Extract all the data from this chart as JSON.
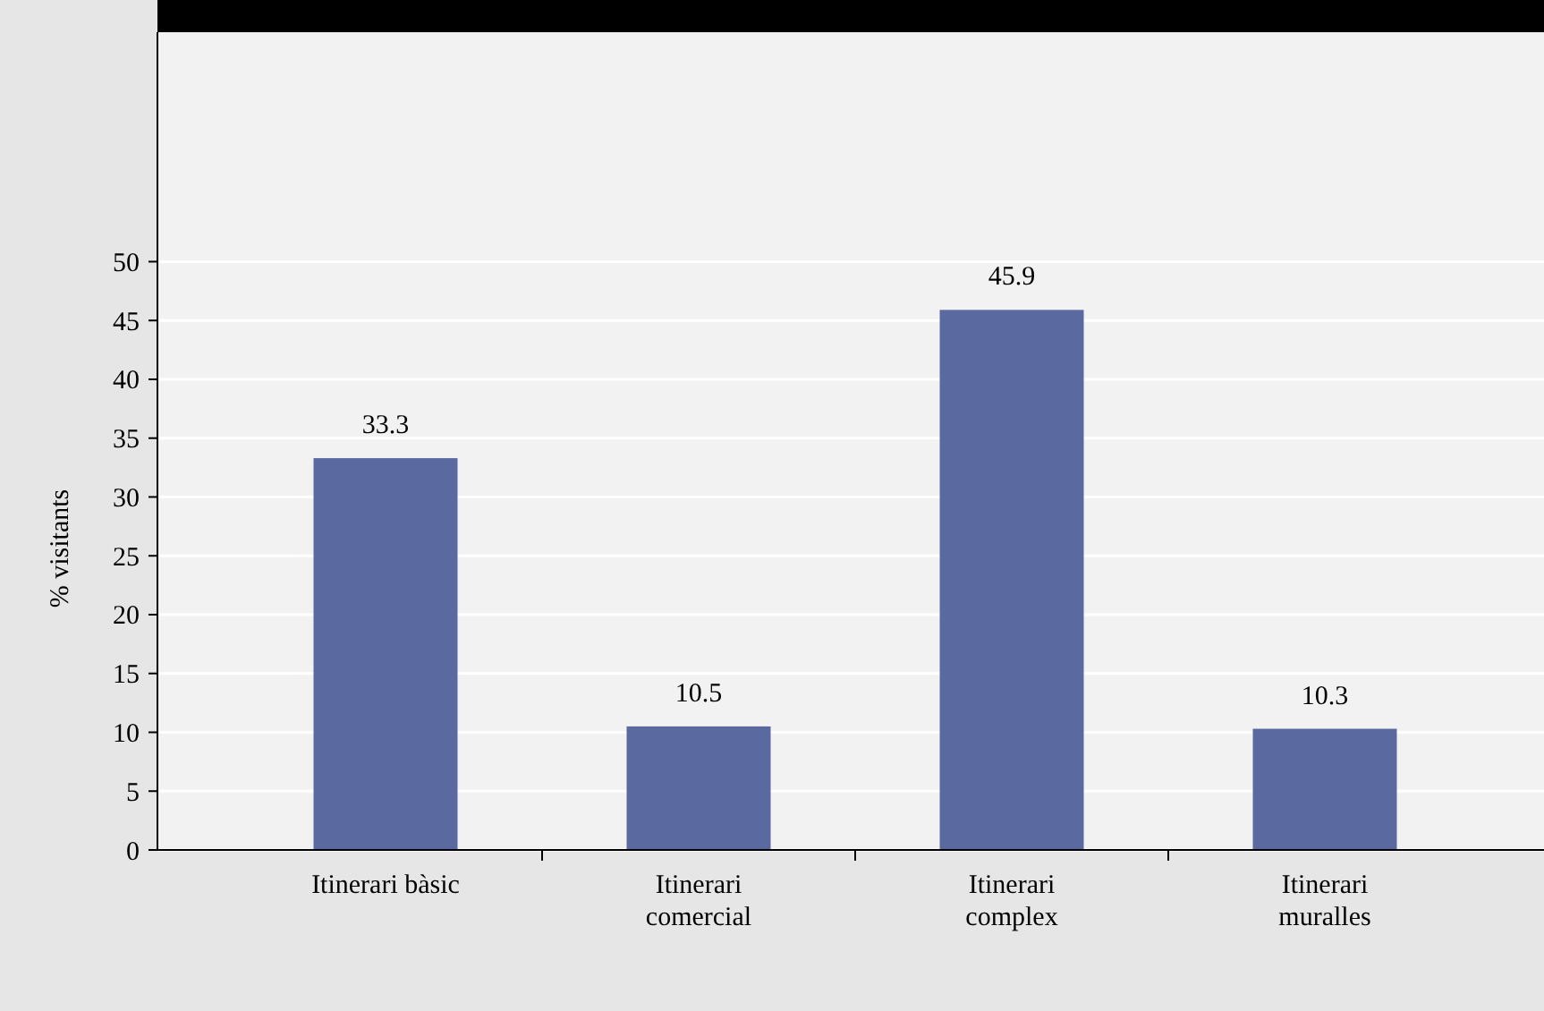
{
  "chart_data": {
    "type": "bar",
    "ylabel": "% visitants",
    "categories": [
      "Itinerari bàsic",
      "Itinerari comercial",
      "Itinerari complex",
      "Itinerari muralles"
    ],
    "values": [
      33.3,
      10.5,
      45.9,
      10.3
    ],
    "color": "#5a6aa0",
    "data_labels": true,
    "ylim": [
      0,
      69.5
    ],
    "yticks": [
      0,
      5,
      10,
      15,
      20,
      25,
      30,
      35,
      40,
      45,
      50
    ],
    "grid": "y"
  }
}
